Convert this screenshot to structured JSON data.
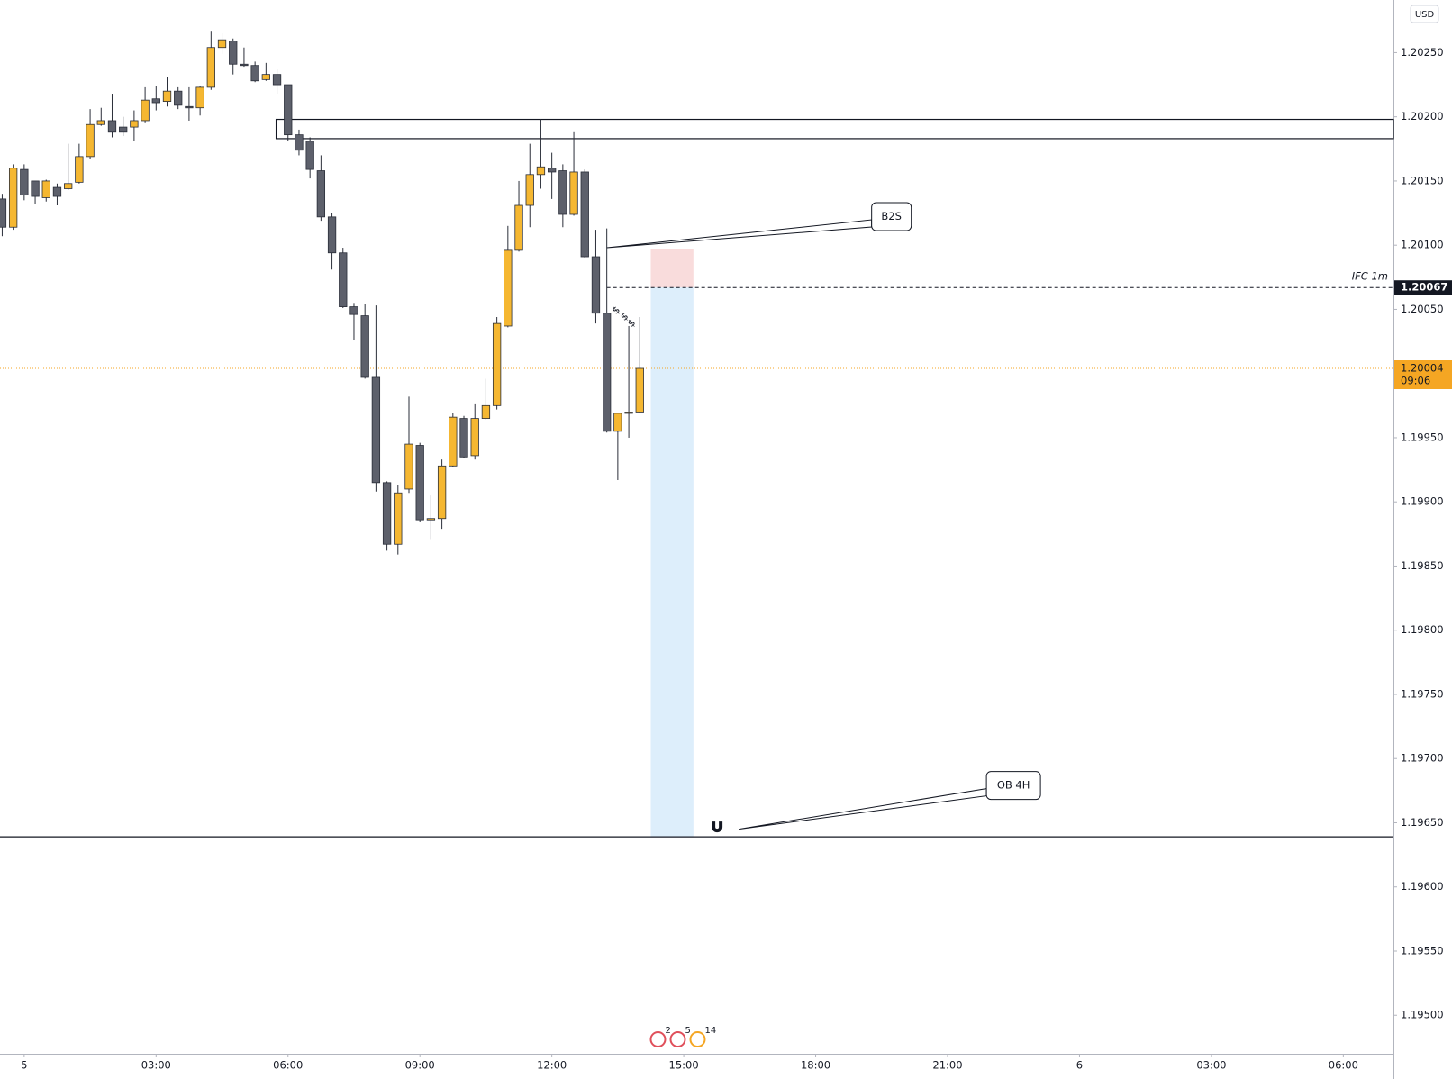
{
  "chart_data": {
    "type": "candlestick",
    "currency": "USD",
    "x": [
      -0.5,
      -0.25,
      0,
      0.25,
      0.5,
      0.75,
      1,
      1.25,
      1.5,
      1.75,
      2,
      2.25,
      2.5,
      2.75,
      3,
      3.25,
      3.5,
      3.75,
      4,
      4.25,
      4.5,
      4.75,
      5,
      5.25,
      5.5,
      5.75,
      6,
      6.25,
      6.5,
      6.75,
      7,
      7.25,
      7.5,
      7.75,
      8,
      8.25,
      8.5,
      8.75,
      9,
      9.25,
      9.5,
      9.75,
      10,
      10.25,
      10.5,
      10.75,
      11,
      11.25,
      11.5,
      11.75,
      12,
      12.25,
      12.5,
      12.75,
      13,
      13.25,
      13.5,
      13.75,
      14
    ],
    "open": [
      1.20136,
      1.20114,
      1.20159,
      1.2015,
      1.20137,
      1.20145,
      1.20144,
      1.20149,
      1.20169,
      1.20194,
      1.20197,
      1.20192,
      1.20192,
      1.20197,
      1.20214,
      1.20212,
      1.2022,
      1.20208,
      1.20207,
      1.20223,
      1.20254,
      1.20259,
      1.20241,
      1.2024,
      1.20229,
      1.20233,
      1.20225,
      1.20186,
      1.20181,
      1.20158,
      1.20122,
      1.20094,
      1.20052,
      1.20045,
      1.19997,
      1.19915,
      1.19867,
      1.1991,
      1.19944,
      1.19887,
      1.19887,
      1.19928,
      1.19965,
      1.19936,
      1.19965,
      1.19975,
      1.20037,
      1.20096,
      1.20131,
      1.20155,
      1.2016,
      1.20158,
      1.20124,
      1.20157,
      1.20091,
      1.20047,
      1.19955,
      1.19969,
      1.1997
    ],
    "high": [
      1.2014,
      1.20163,
      1.20163,
      1.2015,
      1.20151,
      1.20148,
      1.20179,
      1.20179,
      1.20206,
      1.20207,
      1.20218,
      1.202,
      1.20205,
      1.20223,
      1.20224,
      1.20231,
      1.20223,
      1.20223,
      1.20224,
      1.20267,
      1.20265,
      1.20261,
      1.20254,
      1.20243,
      1.20242,
      1.20237,
      1.20225,
      1.2019,
      1.20184,
      1.2017,
      1.20125,
      1.20098,
      1.20055,
      1.20054,
      1.20053,
      1.19916,
      1.19913,
      1.19982,
      1.19946,
      1.19905,
      1.19933,
      1.19969,
      1.19967,
      1.19976,
      1.19996,
      1.20044,
      1.20115,
      1.2015,
      1.20179,
      1.20198,
      1.20172,
      1.20163,
      1.20188,
      1.20159,
      1.20112,
      1.20113,
      1.19969,
      1.20037,
      1.20044
    ],
    "low": [
      1.20107,
      1.20112,
      1.20135,
      1.20132,
      1.20134,
      1.20131,
      1.20143,
      1.20148,
      1.20167,
      1.20193,
      1.20184,
      1.20185,
      1.20181,
      1.20195,
      1.20205,
      1.20208,
      1.20206,
      1.20197,
      1.20201,
      1.20221,
      1.20249,
      1.20233,
      1.20239,
      1.20227,
      1.20228,
      1.20218,
      1.20181,
      1.2017,
      1.20152,
      1.20119,
      1.20081,
      1.20051,
      1.20026,
      1.19996,
      1.19908,
      1.19862,
      1.19859,
      1.19907,
      1.19884,
      1.19871,
      1.19879,
      1.19927,
      1.19934,
      1.19933,
      1.19964,
      1.19972,
      1.20036,
      1.20095,
      1.20114,
      1.20144,
      1.20136,
      1.20114,
      1.20123,
      1.2009,
      1.20039,
      1.19954,
      1.19917,
      1.1995,
      1.19969
    ],
    "close": [
      1.20114,
      1.2016,
      1.20139,
      1.20138,
      1.2015,
      1.20138,
      1.20148,
      1.20169,
      1.20194,
      1.20197,
      1.20188,
      1.20188,
      1.20197,
      1.20213,
      1.20211,
      1.2022,
      1.20209,
      1.20207,
      1.20223,
      1.20254,
      1.2026,
      1.20241,
      1.2024,
      1.20228,
      1.20233,
      1.20225,
      1.20186,
      1.20174,
      1.20159,
      1.20122,
      1.20094,
      1.20052,
      1.20046,
      1.19997,
      1.19915,
      1.19867,
      1.19907,
      1.19945,
      1.19886,
      1.19887,
      1.19928,
      1.19966,
      1.19935,
      1.19965,
      1.19975,
      1.20039,
      1.20096,
      1.20131,
      1.20155,
      1.20161,
      1.20157,
      1.20124,
      1.20157,
      1.20091,
      1.20047,
      1.19955,
      1.19969,
      1.1997,
      1.20004
    ],
    "up_color": "#f5b731",
    "down_color": "#5d606b",
    "xlim": [
      -0.55,
      31.14
    ],
    "xticks": [
      {
        "value": 0,
        "label": "5"
      },
      {
        "value": 3,
        "label": "03:00"
      },
      {
        "value": 6,
        "label": "06:00"
      },
      {
        "value": 9,
        "label": "09:00"
      },
      {
        "value": 12,
        "label": "12:00"
      },
      {
        "value": 15,
        "label": "15:00"
      },
      {
        "value": 18,
        "label": "18:00"
      },
      {
        "value": 21,
        "label": "21:00"
      },
      {
        "value": 24,
        "label": "6"
      },
      {
        "value": 27,
        "label": "03:00"
      },
      {
        "value": 30,
        "label": "06:00"
      }
    ],
    "ylim": [
      1.1947,
      1.20291
    ],
    "yticks": [
      {
        "value": 1.2025,
        "label": "1.20250"
      },
      {
        "value": 1.202,
        "label": "1.20200"
      },
      {
        "value": 1.2015,
        "label": "1.20150"
      },
      {
        "value": 1.201,
        "label": "1.20100"
      },
      {
        "value": 1.2005,
        "label": "1.20050"
      },
      {
        "value": 1.2,
        "label": "1.20000"
      },
      {
        "value": 1.1995,
        "label": "1.19950"
      },
      {
        "value": 1.199,
        "label": "1.19900"
      },
      {
        "value": 1.1985,
        "label": "1.19850"
      },
      {
        "value": 1.198,
        "label": "1.19800"
      },
      {
        "value": 1.1975,
        "label": "1.19750"
      },
      {
        "value": 1.197,
        "label": "1.19700"
      },
      {
        "value": 1.1965,
        "label": "1.19650"
      },
      {
        "value": 1.196,
        "label": "1.19600"
      },
      {
        "value": 1.1955,
        "label": "1.19550"
      },
      {
        "value": 1.195,
        "label": "1.19500"
      }
    ],
    "last_price": {
      "value": 1.20004,
      "label": "1.20004",
      "countdown": "09:06",
      "color": "#f5a623"
    },
    "ifc_line": {
      "text": "IFC 1m",
      "value": 1.20067,
      "label": "1.20067",
      "start": 13.25
    },
    "zone": {
      "start": 5.73,
      "low": 1.20183,
      "high": 1.20198
    },
    "ob_line": 1.19639,
    "position": {
      "start": 14.25,
      "end": 15.22,
      "stop": 1.20097,
      "entry": 1.20067,
      "target": 1.19639
    },
    "callouts": [
      {
        "text": "B2S",
        "x": 13.25,
        "y": 1.20098
      },
      {
        "text": "OB 4H",
        "x": 16.25,
        "y": 1.19645
      }
    ],
    "markers": [
      {
        "text": "$",
        "x": 13.47,
        "y": 1.20049
      },
      {
        "text": "$",
        "x": 13.66,
        "y": 1.20044
      },
      {
        "text": "$",
        "x": 13.82,
        "y": 1.20039
      }
    ],
    "events": [
      "2",
      "5",
      "14"
    ]
  }
}
